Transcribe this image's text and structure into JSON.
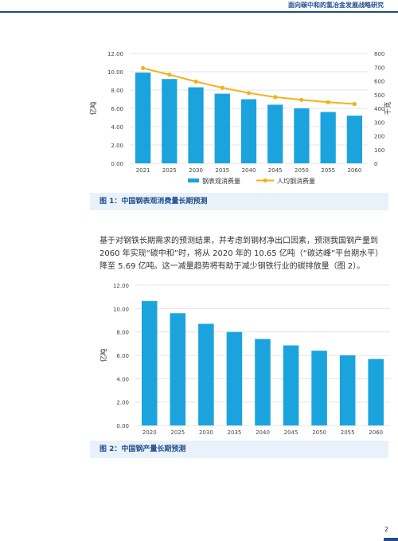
{
  "header": {
    "title": "面向碳中和的氢冶金发展战略研究"
  },
  "paragraph": "基于对钢铁长期需求的预测结果，并考虑到钢材净出口因素，预测我国钢产量到 2060 年实现“碳中和”时，将从 2020 年的 10.65 亿吨（“碳达峰”平台期水平）降至 5.69 亿吨。这一减量趋势将有助于减少钢铁行业的碳排放量（图 2）。",
  "page_number": "2",
  "colors": {
    "bar": "#1ba3de",
    "line": "#f5b21a",
    "caption_bg": "#e9f2fa",
    "accent": "#1f4e8c"
  },
  "chart_data": [
    {
      "type": "bar",
      "caption": "图 1：中国钢表观消费量长期预测",
      "categories": [
        "2021",
        "2025",
        "2030",
        "2035",
        "2040",
        "2045",
        "2050",
        "2055",
        "2060"
      ],
      "ylabel": "亿吨",
      "y2label": "千克",
      "ylim": [
        0,
        12
      ],
      "y2lim": [
        0,
        800
      ],
      "yticks": [
        "0.00",
        "2.00",
        "4.00",
        "6.00",
        "8.00",
        "10.00",
        "12.00"
      ],
      "y2ticks": [
        "0",
        "100",
        "200",
        "300",
        "400",
        "500",
        "600",
        "700",
        "800"
      ],
      "grid": true,
      "legend": "bottom",
      "series": [
        {
          "name": "钢表观消费量",
          "type": "bar",
          "axis": "left",
          "values": [
            9.9,
            9.2,
            8.3,
            7.6,
            7.0,
            6.4,
            6.0,
            5.6,
            5.2
          ]
        },
        {
          "name": "人均钢消费量",
          "type": "line",
          "axis": "right",
          "values": [
            693,
            645,
            595,
            550,
            512,
            482,
            462,
            445,
            432
          ]
        }
      ]
    },
    {
      "type": "bar",
      "caption": "图 2：中国钢产量长期预测",
      "categories": [
        "2020",
        "2025",
        "2030",
        "2035",
        "2040",
        "2045",
        "2050",
        "2055",
        "2060"
      ],
      "ylabel": "亿吨",
      "ylim": [
        0,
        12
      ],
      "yticks": [
        "0.00",
        "2.00",
        "4.00",
        "6.00",
        "8.00",
        "10.00",
        "12.00"
      ],
      "grid": true,
      "values": [
        10.65,
        9.6,
        8.7,
        8.0,
        7.4,
        6.85,
        6.4,
        6.0,
        5.69
      ]
    }
  ]
}
